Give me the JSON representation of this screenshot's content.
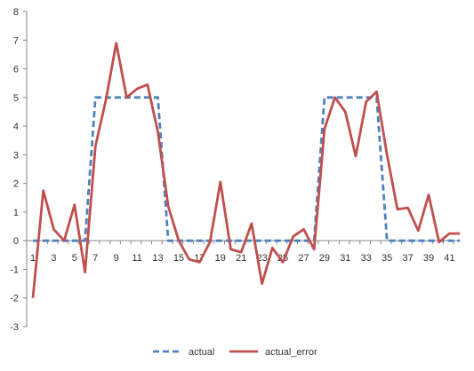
{
  "chart_data": {
    "type": "line",
    "title": "",
    "xlabel": "",
    "ylabel": "",
    "ylim": [
      -3,
      8
    ],
    "yticks": [
      -3,
      -2,
      -1,
      0,
      1,
      2,
      3,
      4,
      5,
      6,
      7,
      8
    ],
    "x": [
      1,
      2,
      3,
      4,
      5,
      6,
      7,
      8,
      9,
      10,
      11,
      12,
      13,
      14,
      15,
      16,
      17,
      18,
      19,
      20,
      21,
      22,
      23,
      24,
      25,
      26,
      27,
      28,
      29,
      30,
      31,
      32,
      33,
      34,
      35,
      36,
      37,
      38,
      39,
      40,
      41,
      42
    ],
    "xtick_labels": [
      1,
      3,
      5,
      7,
      9,
      11,
      13,
      15,
      17,
      19,
      21,
      23,
      25,
      27,
      29,
      31,
      33,
      35,
      37,
      39,
      41
    ],
    "grid": false,
    "legend_position": "bottom",
    "series": [
      {
        "name": "actual",
        "style": "dashed",
        "color": "#4F81BD",
        "values": [
          0,
          0,
          0,
          0,
          0,
          0,
          5,
          5,
          5,
          5,
          5,
          5,
          5,
          0,
          0,
          0,
          0,
          0,
          0,
          0,
          0,
          0,
          0,
          0,
          0,
          0,
          0,
          0,
          5,
          5,
          5,
          5,
          5,
          5,
          0,
          0,
          0,
          0,
          0,
          0,
          0,
          0
        ]
      },
      {
        "name": "actual_error",
        "style": "solid",
        "color": "#C0504D",
        "values": [
          -2.0,
          1.75,
          0.4,
          0.0,
          1.25,
          -1.1,
          3.3,
          4.9,
          6.9,
          5.0,
          5.3,
          5.45,
          3.8,
          1.2,
          0.0,
          -0.65,
          -0.75,
          -0.05,
          2.05,
          -0.3,
          -0.4,
          0.6,
          -1.5,
          -0.25,
          -0.75,
          0.15,
          0.4,
          -0.3,
          3.9,
          5.0,
          4.5,
          2.95,
          4.85,
          5.2,
          3.0,
          1.1,
          1.15,
          0.35,
          1.6,
          -0.05,
          0.25,
          0.25
        ]
      }
    ]
  }
}
